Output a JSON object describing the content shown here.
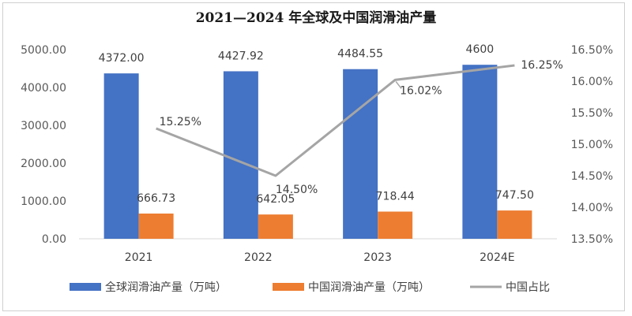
{
  "chart_data": {
    "type": "bar",
    "title": "2021—2024 年全球及中国润滑油产量",
    "categories": [
      "2021",
      "2022",
      "2023",
      "2024E"
    ],
    "series": [
      {
        "name": "全球润滑油产量（万吨）",
        "kind": "bar",
        "axis": "left",
        "color": "#4472C4",
        "values": [
          4372.0,
          4427.92,
          4484.55,
          4600
        ],
        "labels": [
          "4372.00",
          "4427.92",
          "4484.55",
          "4600"
        ]
      },
      {
        "name": "中国润滑油产量（万吨）",
        "kind": "bar",
        "axis": "left",
        "color": "#ED7D31",
        "values": [
          666.73,
          642.05,
          718.44,
          747.5
        ],
        "labels": [
          "666.73",
          "642.05",
          "718.44",
          "747.50"
        ]
      },
      {
        "name": "中国占比",
        "kind": "line",
        "axis": "right",
        "color": "#A5A5A5",
        "values": [
          15.25,
          14.5,
          16.02,
          16.25
        ],
        "labels": [
          "15.25%",
          "14.50%",
          "16.02%",
          "16.25%"
        ]
      }
    ],
    "y_left": {
      "min": 0,
      "max": 5000,
      "ticks": [
        "0.00",
        "1000.00",
        "2000.00",
        "3000.00",
        "4000.00",
        "5000.00"
      ]
    },
    "y_right": {
      "min": 13.5,
      "max": 16.5,
      "ticks": [
        "13.50%",
        "14.00%",
        "14.50%",
        "15.00%",
        "15.50%",
        "16.00%",
        "16.50%"
      ]
    },
    "grid": false,
    "legend_position": "bottom"
  }
}
